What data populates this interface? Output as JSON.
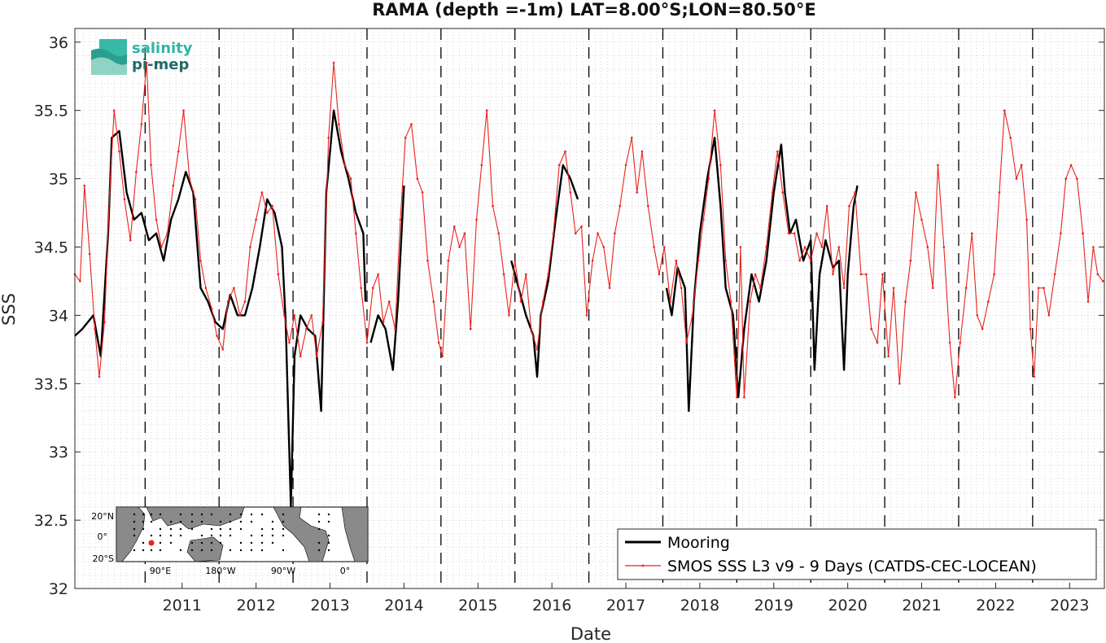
{
  "chart_data": {
    "type": "line",
    "title": "RAMA (depth =-1m) LAT=8.00°S;LON=80.50°E",
    "xlabel": "Date",
    "ylabel": "SSS",
    "xlim": [
      2010.05,
      2023.97
    ],
    "ylim": [
      32,
      36.1
    ],
    "yticks": [
      "32",
      "32.5",
      "33",
      "33.5",
      "34",
      "34.5",
      "35",
      "35.5",
      "36"
    ],
    "xticks": [
      "2011",
      "2012",
      "2013",
      "2014",
      "2015",
      "2016",
      "2017",
      "2018",
      "2019",
      "2020",
      "2021",
      "2022",
      "2023"
    ],
    "year_boundaries": [
      2011,
      2012,
      2013,
      2014,
      2015,
      2016,
      2017,
      2018,
      2019,
      2020,
      2021,
      2022,
      2023
    ],
    "grid": true,
    "legend_position": "bottom-right",
    "series": [
      {
        "name": "Mooring",
        "color": "#000000",
        "segments": [
          [
            [
              2010.05,
              33.85
            ],
            [
              2010.15,
              33.9
            ],
            [
              2010.3,
              34.0
            ],
            [
              2010.4,
              33.7
            ],
            [
              2010.5,
              34.6
            ],
            [
              2010.55,
              35.3
            ],
            [
              2010.65,
              35.35
            ],
            [
              2010.75,
              34.9
            ],
            [
              2010.85,
              34.7
            ],
            [
              2010.95,
              34.75
            ],
            [
              2011.05,
              34.55
            ],
            [
              2011.15,
              34.6
            ],
            [
              2011.25,
              34.4
            ],
            [
              2011.35,
              34.7
            ],
            [
              2011.45,
              34.85
            ],
            [
              2011.55,
              35.05
            ],
            [
              2011.65,
              34.9
            ],
            [
              2011.75,
              34.2
            ],
            [
              2011.85,
              34.1
            ],
            [
              2011.95,
              33.95
            ],
            [
              2012.05,
              33.9
            ],
            [
              2012.15,
              34.15
            ],
            [
              2012.25,
              34.0
            ],
            [
              2012.35,
              34.0
            ],
            [
              2012.45,
              34.2
            ],
            [
              2012.55,
              34.5
            ],
            [
              2012.65,
              34.85
            ],
            [
              2012.75,
              34.75
            ],
            [
              2012.85,
              34.5
            ],
            [
              2012.9,
              33.95
            ],
            [
              2012.97,
              32.6
            ],
            [
              2013.02,
              33.7
            ],
            [
              2013.1,
              34.0
            ],
            [
              2013.2,
              33.9
            ],
            [
              2013.3,
              33.85
            ],
            [
              2013.38,
              33.3
            ],
            [
              2013.45,
              34.9
            ],
            [
              2013.55,
              35.5
            ],
            [
              2013.65,
              35.2
            ],
            [
              2013.75,
              35.0
            ],
            [
              2013.85,
              34.75
            ],
            [
              2013.95,
              34.6
            ],
            [
              2013.98,
              34.1
            ]
          ],
          [
            [
              2014.05,
              33.8
            ],
            [
              2014.15,
              34.0
            ],
            [
              2014.25,
              33.9
            ],
            [
              2014.35,
              33.6
            ],
            [
              2014.42,
              34.1
            ],
            [
              2014.5,
              34.95
            ]
          ],
          [
            [
              2015.95,
              34.4
            ],
            [
              2016.05,
              34.2
            ],
            [
              2016.15,
              34.0
            ],
            [
              2016.25,
              33.85
            ],
            [
              2016.3,
              33.55
            ],
            [
              2016.35,
              34.0
            ],
            [
              2016.45,
              34.25
            ],
            [
              2016.55,
              34.7
            ],
            [
              2016.65,
              35.1
            ],
            [
              2016.75,
              35.0
            ],
            [
              2016.85,
              34.85
            ]
          ],
          [
            [
              2018.05,
              34.2
            ],
            [
              2018.12,
              34.0
            ],
            [
              2018.2,
              34.35
            ],
            [
              2018.3,
              34.2
            ],
            [
              2018.35,
              33.3
            ],
            [
              2018.42,
              34.1
            ],
            [
              2018.5,
              34.6
            ],
            [
              2018.6,
              35.0
            ],
            [
              2018.7,
              35.3
            ],
            [
              2018.78,
              34.8
            ],
            [
              2018.85,
              34.2
            ],
            [
              2018.95,
              34.0
            ],
            [
              2019.02,
              33.4
            ],
            [
              2019.1,
              33.9
            ],
            [
              2019.2,
              34.3
            ],
            [
              2019.3,
              34.1
            ],
            [
              2019.4,
              34.4
            ],
            [
              2019.5,
              34.9
            ],
            [
              2019.6,
              35.25
            ],
            [
              2019.65,
              34.9
            ],
            [
              2019.72,
              34.6
            ],
            [
              2019.8,
              34.7
            ],
            [
              2019.9,
              34.4
            ],
            [
              2020.0,
              34.55
            ],
            [
              2020.05,
              33.6
            ],
            [
              2020.12,
              34.3
            ],
            [
              2020.2,
              34.55
            ],
            [
              2020.3,
              34.35
            ],
            [
              2020.38,
              34.4
            ],
            [
              2020.45,
              33.6
            ],
            [
              2020.5,
              34.3
            ],
            [
              2020.58,
              34.8
            ],
            [
              2020.63,
              34.95
            ]
          ]
        ]
      },
      {
        "name": "SMOS SSS L3 v9 - 9 Days (CATDS-CEC-LOCEAN)",
        "color": "#e8231e",
        "points": [
          [
            2010.05,
            34.3
          ],
          [
            2010.12,
            34.25
          ],
          [
            2010.18,
            34.95
          ],
          [
            2010.25,
            34.45
          ],
          [
            2010.32,
            33.9
          ],
          [
            2010.38,
            33.55
          ],
          [
            2010.45,
            33.95
          ],
          [
            2010.52,
            34.9
          ],
          [
            2010.58,
            35.5
          ],
          [
            2010.65,
            35.2
          ],
          [
            2010.72,
            34.85
          ],
          [
            2010.8,
            34.55
          ],
          [
            2010.88,
            35.05
          ],
          [
            2010.95,
            35.4
          ],
          [
            2011.02,
            35.85
          ],
          [
            2011.08,
            35.1
          ],
          [
            2011.15,
            34.7
          ],
          [
            2011.22,
            34.5
          ],
          [
            2011.3,
            34.6
          ],
          [
            2011.38,
            34.95
          ],
          [
            2011.45,
            35.2
          ],
          [
            2011.52,
            35.5
          ],
          [
            2011.6,
            35.0
          ],
          [
            2011.68,
            34.85
          ],
          [
            2011.75,
            34.4
          ],
          [
            2011.82,
            34.2
          ],
          [
            2011.9,
            34.05
          ],
          [
            2011.97,
            33.85
          ],
          [
            2012.05,
            33.75
          ],
          [
            2012.12,
            34.1
          ],
          [
            2012.2,
            34.2
          ],
          [
            2012.28,
            34.0
          ],
          [
            2012.35,
            34.1
          ],
          [
            2012.42,
            34.5
          ],
          [
            2012.5,
            34.7
          ],
          [
            2012.58,
            34.9
          ],
          [
            2012.65,
            34.75
          ],
          [
            2012.72,
            34.8
          ],
          [
            2012.8,
            34.3
          ],
          [
            2012.88,
            34.0
          ],
          [
            2012.95,
            33.8
          ],
          [
            2013.02,
            34.0
          ],
          [
            2013.1,
            33.7
          ],
          [
            2013.18,
            33.9
          ],
          [
            2013.25,
            34.0
          ],
          [
            2013.32,
            33.7
          ],
          [
            2013.4,
            33.95
          ],
          [
            2013.48,
            35.3
          ],
          [
            2013.55,
            35.85
          ],
          [
            2013.62,
            35.4
          ],
          [
            2013.7,
            35.1
          ],
          [
            2013.78,
            35.0
          ],
          [
            2013.85,
            34.6
          ],
          [
            2013.92,
            34.2
          ],
          [
            2014.0,
            33.8
          ],
          [
            2014.08,
            34.2
          ],
          [
            2014.15,
            34.3
          ],
          [
            2014.22,
            33.95
          ],
          [
            2014.3,
            34.1
          ],
          [
            2014.38,
            33.9
          ],
          [
            2014.45,
            34.7
          ],
          [
            2014.52,
            35.3
          ],
          [
            2014.6,
            35.4
          ],
          [
            2014.68,
            35.0
          ],
          [
            2014.75,
            34.9
          ],
          [
            2014.82,
            34.4
          ],
          [
            2014.9,
            34.1
          ],
          [
            2014.97,
            33.8
          ],
          [
            2015.02,
            33.7
          ],
          [
            2015.1,
            34.4
          ],
          [
            2015.18,
            34.65
          ],
          [
            2015.25,
            34.5
          ],
          [
            2015.32,
            34.6
          ],
          [
            2015.4,
            33.9
          ],
          [
            2015.48,
            34.7
          ],
          [
            2015.55,
            35.1
          ],
          [
            2015.62,
            35.5
          ],
          [
            2015.7,
            34.8
          ],
          [
            2015.78,
            34.6
          ],
          [
            2015.85,
            34.3
          ],
          [
            2015.92,
            34.0
          ],
          [
            2016.0,
            34.4
          ],
          [
            2016.08,
            34.1
          ],
          [
            2016.15,
            34.3
          ],
          [
            2016.22,
            33.9
          ],
          [
            2016.3,
            33.75
          ],
          [
            2016.38,
            34.1
          ],
          [
            2016.45,
            34.3
          ],
          [
            2016.52,
            34.6
          ],
          [
            2016.6,
            35.1
          ],
          [
            2016.68,
            35.2
          ],
          [
            2016.75,
            34.9
          ],
          [
            2016.82,
            34.6
          ],
          [
            2016.9,
            34.65
          ],
          [
            2016.97,
            34.0
          ],
          [
            2017.05,
            34.4
          ],
          [
            2017.12,
            34.6
          ],
          [
            2017.2,
            34.5
          ],
          [
            2017.28,
            34.2
          ],
          [
            2017.35,
            34.6
          ],
          [
            2017.42,
            34.8
          ],
          [
            2017.5,
            35.1
          ],
          [
            2017.58,
            35.3
          ],
          [
            2017.65,
            34.9
          ],
          [
            2017.72,
            35.2
          ],
          [
            2017.8,
            34.8
          ],
          [
            2017.88,
            34.5
          ],
          [
            2017.95,
            34.3
          ],
          [
            2018.02,
            34.5
          ],
          [
            2018.1,
            34.1
          ],
          [
            2018.18,
            34.4
          ],
          [
            2018.25,
            34.2
          ],
          [
            2018.32,
            33.8
          ],
          [
            2018.4,
            34.0
          ],
          [
            2018.48,
            34.4
          ],
          [
            2018.55,
            34.7
          ],
          [
            2018.62,
            35.0
          ],
          [
            2018.7,
            35.5
          ],
          [
            2018.78,
            35.1
          ],
          [
            2018.85,
            34.4
          ],
          [
            2018.92,
            34.1
          ],
          [
            2019.0,
            33.4
          ],
          [
            2019.05,
            34.5
          ],
          [
            2019.1,
            33.4
          ],
          [
            2019.18,
            34.1
          ],
          [
            2019.25,
            34.3
          ],
          [
            2019.32,
            34.2
          ],
          [
            2019.4,
            34.5
          ],
          [
            2019.48,
            34.9
          ],
          [
            2019.55,
            35.2
          ],
          [
            2019.62,
            34.9
          ],
          [
            2019.7,
            34.6
          ],
          [
            2019.78,
            34.6
          ],
          [
            2019.85,
            34.4
          ],
          [
            2019.92,
            34.5
          ],
          [
            2020.0,
            34.4
          ],
          [
            2020.08,
            34.6
          ],
          [
            2020.15,
            34.5
          ],
          [
            2020.22,
            34.8
          ],
          [
            2020.3,
            34.3
          ],
          [
            2020.38,
            34.5
          ],
          [
            2020.45,
            34.2
          ],
          [
            2020.52,
            34.8
          ],
          [
            2020.6,
            34.9
          ],
          [
            2020.68,
            34.3
          ],
          [
            2020.75,
            34.3
          ],
          [
            2020.82,
            33.9
          ],
          [
            2020.9,
            33.8
          ],
          [
            2020.97,
            34.3
          ],
          [
            2021.05,
            33.7
          ],
          [
            2021.12,
            34.2
          ],
          [
            2021.2,
            33.5
          ],
          [
            2021.28,
            34.1
          ],
          [
            2021.35,
            34.4
          ],
          [
            2021.42,
            34.9
          ],
          [
            2021.5,
            34.7
          ],
          [
            2021.58,
            34.5
          ],
          [
            2021.65,
            34.2
          ],
          [
            2021.72,
            35.1
          ],
          [
            2021.8,
            34.5
          ],
          [
            2021.88,
            33.8
          ],
          [
            2021.95,
            33.4
          ],
          [
            2022.02,
            33.8
          ],
          [
            2022.1,
            34.2
          ],
          [
            2022.18,
            34.6
          ],
          [
            2022.25,
            34.0
          ],
          [
            2022.32,
            33.9
          ],
          [
            2022.4,
            34.1
          ],
          [
            2022.48,
            34.3
          ],
          [
            2022.55,
            34.9
          ],
          [
            2022.62,
            35.5
          ],
          [
            2022.7,
            35.3
          ],
          [
            2022.78,
            35.0
          ],
          [
            2022.85,
            35.1
          ],
          [
            2022.92,
            34.7
          ],
          [
            2022.97,
            33.9
          ],
          [
            2023.02,
            33.55
          ],
          [
            2023.08,
            34.2
          ],
          [
            2023.15,
            34.2
          ],
          [
            2023.22,
            34.0
          ],
          [
            2023.3,
            34.3
          ],
          [
            2023.38,
            34.6
          ],
          [
            2023.45,
            35.0
          ],
          [
            2023.52,
            35.1
          ],
          [
            2023.6,
            35.0
          ],
          [
            2023.68,
            34.6
          ],
          [
            2023.75,
            34.1
          ],
          [
            2023.82,
            34.5
          ],
          [
            2023.88,
            34.3
          ],
          [
            2023.95,
            34.25
          ]
        ]
      }
    ]
  },
  "logo": {
    "line1": "salinity",
    "line2": "pi-mep"
  },
  "inset_map": {
    "lat_labels": [
      "20°N",
      "0°",
      "20°S"
    ],
    "lon_labels": [
      "90°E",
      "180°W",
      "90°W",
      "0°"
    ],
    "marker_color": "#e8231e"
  }
}
